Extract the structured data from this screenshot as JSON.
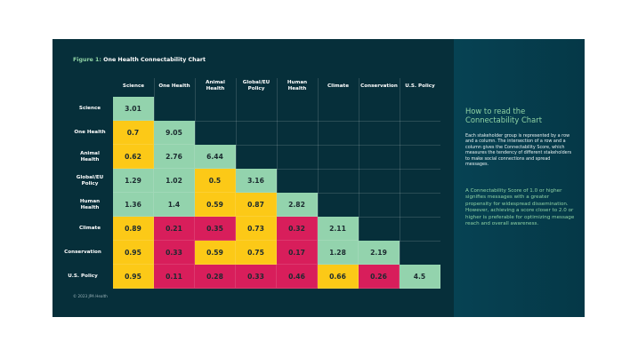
{
  "figure": {
    "label": "Figure 1:",
    "title": "One Health Connectability Chart"
  },
  "colors": {
    "background": "#062f3a",
    "panel": "#064253",
    "high": "#93d3ad",
    "medium": "#fcc917",
    "low": "#d81e5b",
    "accent_text": "#8fd3a4"
  },
  "chart_data": {
    "type": "heatmap",
    "title": "One Health Connectability Chart",
    "columns": [
      "Science",
      "One Health",
      "Animal Health",
      "Global/EU Policy",
      "Human Health",
      "Climate",
      "Conservation",
      "U.S. Policy"
    ],
    "rows": [
      "Science",
      "One Health",
      "Animal Health",
      "Global/EU Policy",
      "Human Health",
      "Climate",
      "Conservation",
      "U.S. Policy"
    ],
    "column_labels": [
      [
        "Science"
      ],
      [
        "One Health"
      ],
      [
        "Animal",
        "Health"
      ],
      [
        "Global/EU",
        "Policy"
      ],
      [
        "Human",
        "Health"
      ],
      [
        "Climate"
      ],
      [
        "Conservation"
      ],
      [
        "U.S. Policy"
      ]
    ],
    "row_labels": [
      [
        "Science"
      ],
      [
        "One Health"
      ],
      [
        "Animal",
        "Health"
      ],
      [
        "Global/EU",
        "Policy"
      ],
      [
        "Human",
        "Health"
      ],
      [
        "Climate"
      ],
      [
        "Conservation"
      ],
      [
        "U.S. Policy"
      ]
    ],
    "values": [
      [
        "3.01"
      ],
      [
        "0.7",
        "9.05"
      ],
      [
        "0.62",
        "2.76",
        "6.44"
      ],
      [
        "1.29",
        "1.02",
        "0.5",
        "3.16"
      ],
      [
        "1.36",
        "1.4",
        "0.59",
        "0.87",
        "2.82"
      ],
      [
        "0.89",
        "0.21",
        "0.35",
        "0.73",
        "0.32",
        "2.11"
      ],
      [
        "0.95",
        "0.33",
        "0.59",
        "0.75",
        "0.17",
        "1.28",
        "2.19"
      ],
      [
        "0.95",
        "0.11",
        "0.28",
        "0.33",
        "0.46",
        "0.66",
        "0.26",
        "4.5"
      ]
    ],
    "categories_by_color": {
      "high": "score >= 1.0",
      "medium": "0.5 - 0.99",
      "low": "< 0.5"
    },
    "grid": true
  },
  "side_panel": {
    "title": "How to read the Connectability Chart",
    "paragraph1": "Each stakeholder group is represented by a row and a column. The intersection of a row and a column gives the Connectability Score, which measures the tendency of different stakeholders to make social connections and spread messages.",
    "paragraph2": "A Connectability Score of 1.0 or higher signifies messages with a greater propensity for widespread dissemination. However, achieving a score closer to 2.0 or higher is preferable for optimizing message reach and overall awareness."
  },
  "footer": {
    "copyright": "© 2023 JPA Health"
  }
}
